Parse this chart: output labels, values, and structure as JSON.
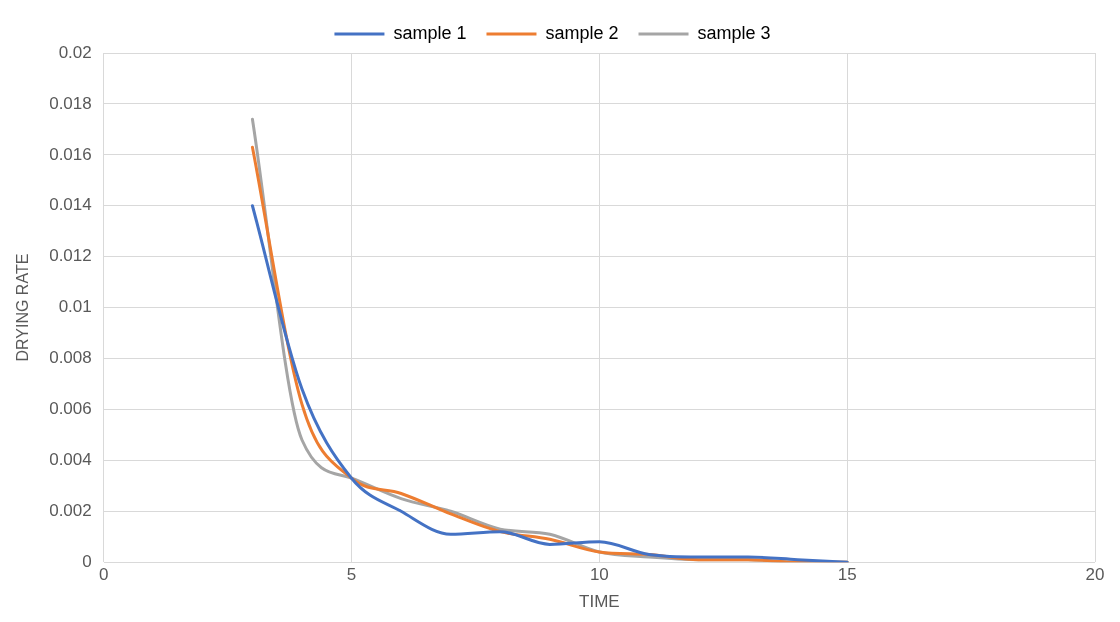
{
  "chart_data": {
    "type": "line",
    "xlabel": "TIME",
    "ylabel": "DRYING RATE",
    "x": [
      3,
      4,
      5,
      6,
      7,
      8,
      9,
      10,
      11,
      12,
      13,
      14,
      15
    ],
    "series": [
      {
        "name": "sample 1",
        "color": "#4472c4",
        "values": [
          0.014,
          0.0068,
          0.0033,
          0.002,
          0.0011,
          0.0012,
          0.0007,
          0.0008,
          0.0003,
          0.0002,
          0.0002,
          0.0001,
          0
        ]
      },
      {
        "name": "sample 2",
        "color": "#ed7d31",
        "values": [
          0.0163,
          0.0062,
          0.0033,
          0.0027,
          0.0019,
          0.0012,
          0.0009,
          0.0004,
          0.0003,
          0.0001,
          0.0001,
          0,
          0
        ]
      },
      {
        "name": "sample 3",
        "color": "#a5a5a5",
        "values": [
          0.0174,
          0.0048,
          0.0033,
          0.0025,
          0.002,
          0.0013,
          0.0011,
          0.0004,
          0.0002,
          0.0001,
          0.0001,
          0,
          0
        ]
      }
    ],
    "xlim": [
      0,
      20
    ],
    "xticks": [
      0,
      5,
      10,
      15,
      20
    ],
    "ylim": [
      0,
      0.02
    ],
    "yticks": [
      0,
      0.002,
      0.004,
      0.006,
      0.008,
      0.01,
      0.012,
      0.014,
      0.016,
      0.018,
      0.02
    ],
    "grid": true,
    "legend": "top",
    "marker": "none"
  }
}
